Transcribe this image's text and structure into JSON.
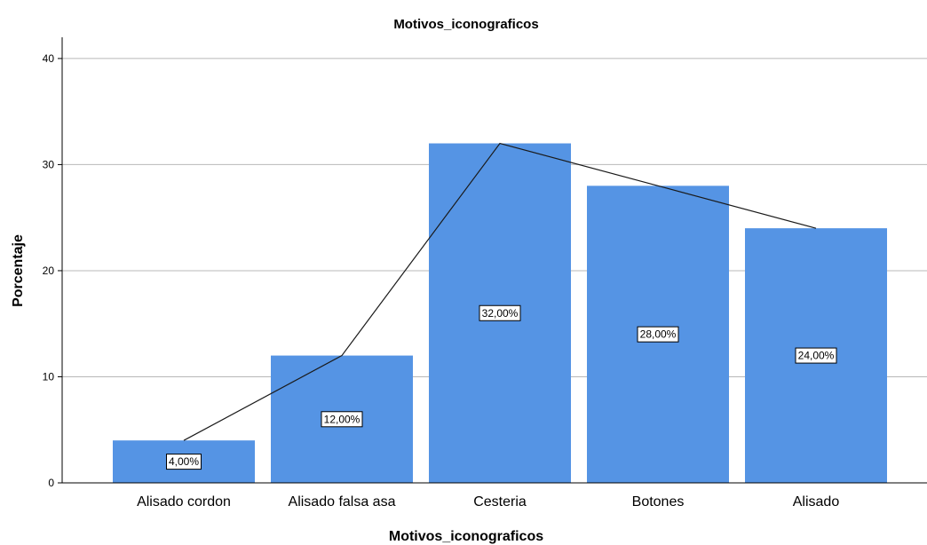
{
  "chart_data": {
    "type": "bar",
    "title": "Motivos_iconograficos",
    "xlabel": "Motivos_iconograficos",
    "ylabel": "Porcentaje",
    "categories": [
      "Alisado cordon",
      "Alisado falsa asa",
      "Cesteria",
      "Botones",
      "Alisado"
    ],
    "values": [
      4,
      12,
      32,
      28,
      24
    ],
    "data_labels": [
      "4,00%",
      "12,00%",
      "32,00%",
      "28,00%",
      "24,00%"
    ],
    "ylim": [
      0,
      42
    ],
    "yticks": [
      0,
      10,
      20,
      30,
      40
    ],
    "grid": true,
    "trend_line": true,
    "bar_color": "#5594e4",
    "line_color": "#1a1a1a"
  }
}
